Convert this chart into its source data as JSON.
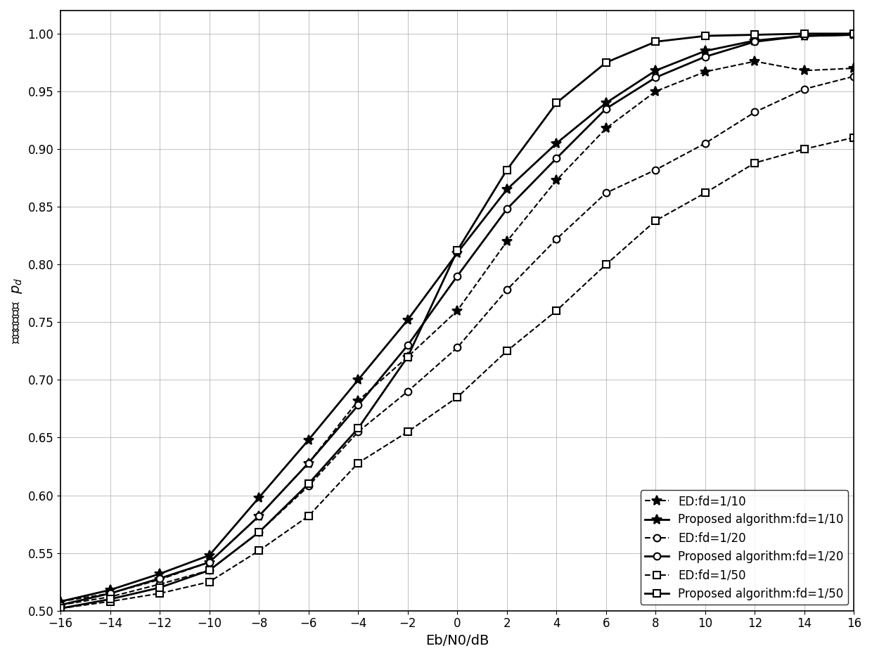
{
  "title": "",
  "xlabel": "Eb/N0/dB",
  "ylabel": "正确检测概率  $p_d$",
  "xlim": [
    -16,
    16
  ],
  "ylim": [
    0.5,
    1.02
  ],
  "yticks": [
    0.5,
    0.55,
    0.6,
    0.65,
    0.7,
    0.75,
    0.8,
    0.85,
    0.9,
    0.95,
    1.0
  ],
  "xticks": [
    -16,
    -14,
    -12,
    -10,
    -8,
    -6,
    -4,
    -2,
    0,
    2,
    4,
    6,
    8,
    10,
    12,
    14,
    16
  ],
  "background_color": "#ffffff",
  "grid": true,
  "legend_loc": "lower right",
  "series": [
    {
      "label": "ED:fd=1/10",
      "color": "#000000",
      "linestyle": "--",
      "marker": "*",
      "markersize": 10,
      "linewidth": 1.5,
      "x": [
        -16,
        -14,
        -12,
        -10,
        -8,
        -6,
        -4,
        -2,
        0,
        2,
        4,
        6,
        8,
        10,
        12,
        14,
        16
      ],
      "y": [
        0.508,
        0.515,
        0.527,
        0.542,
        0.582,
        0.628,
        0.682,
        0.72,
        0.76,
        0.82,
        0.873,
        0.918,
        0.95,
        0.967,
        0.976,
        0.968,
        0.97
      ]
    },
    {
      "label": "Proposed algorithm:fd=1/10",
      "color": "#000000",
      "linestyle": "-",
      "marker": "*",
      "markersize": 10,
      "linewidth": 2.0,
      "x": [
        -16,
        -14,
        -12,
        -10,
        -8,
        -6,
        -4,
        -2,
        0,
        2,
        4,
        6,
        8,
        10,
        12,
        14,
        16
      ],
      "y": [
        0.508,
        0.518,
        0.532,
        0.548,
        0.598,
        0.648,
        0.7,
        0.752,
        0.81,
        0.865,
        0.905,
        0.94,
        0.968,
        0.985,
        0.994,
        0.998,
        0.999
      ]
    },
    {
      "label": "ED:fd=1/20",
      "color": "#000000",
      "linestyle": "--",
      "marker": "o",
      "markersize": 7,
      "linewidth": 1.5,
      "x": [
        -16,
        -14,
        -12,
        -10,
        -8,
        -6,
        -4,
        -2,
        0,
        2,
        4,
        6,
        8,
        10,
        12,
        14,
        16
      ],
      "y": [
        0.505,
        0.512,
        0.523,
        0.535,
        0.568,
        0.608,
        0.655,
        0.69,
        0.728,
        0.778,
        0.822,
        0.862,
        0.882,
        0.905,
        0.932,
        0.952,
        0.963
      ]
    },
    {
      "label": "Proposed algorithm:fd=1/20",
      "color": "#000000",
      "linestyle": "-",
      "marker": "o",
      "markersize": 7,
      "linewidth": 2.0,
      "x": [
        -16,
        -14,
        -12,
        -10,
        -8,
        -6,
        -4,
        -2,
        0,
        2,
        4,
        6,
        8,
        10,
        12,
        14,
        16
      ],
      "y": [
        0.505,
        0.515,
        0.528,
        0.542,
        0.582,
        0.628,
        0.678,
        0.73,
        0.79,
        0.848,
        0.892,
        0.935,
        0.962,
        0.98,
        0.993,
        0.998,
        0.999
      ]
    },
    {
      "label": "ED:fd=1/50",
      "color": "#000000",
      "linestyle": "--",
      "marker": "s",
      "markersize": 7,
      "linewidth": 1.5,
      "x": [
        -16,
        -14,
        -12,
        -10,
        -8,
        -6,
        -4,
        -2,
        0,
        2,
        4,
        6,
        8,
        10,
        12,
        14,
        16
      ],
      "y": [
        0.502,
        0.508,
        0.515,
        0.525,
        0.552,
        0.582,
        0.628,
        0.655,
        0.685,
        0.725,
        0.76,
        0.8,
        0.838,
        0.862,
        0.888,
        0.9,
        0.91
      ]
    },
    {
      "label": "Proposed algorithm:fd=1/50",
      "color": "#000000",
      "linestyle": "-",
      "marker": "s",
      "markersize": 7,
      "linewidth": 2.0,
      "x": [
        -16,
        -14,
        -12,
        -10,
        -8,
        -6,
        -4,
        -2,
        0,
        2,
        4,
        6,
        8,
        10,
        12,
        14,
        16
      ],
      "y": [
        0.502,
        0.51,
        0.52,
        0.535,
        0.568,
        0.61,
        0.658,
        0.72,
        0.812,
        0.882,
        0.94,
        0.975,
        0.993,
        0.998,
        0.999,
        1.0,
        1.0
      ]
    }
  ]
}
